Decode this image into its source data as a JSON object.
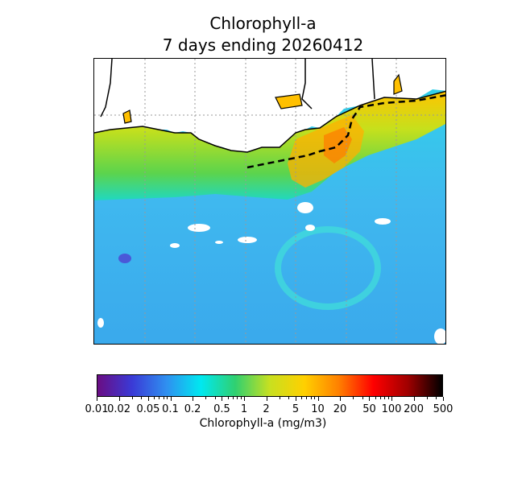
{
  "figure": {
    "title_line1": "Chlorophyll-a",
    "title_line2": "7 days ending 20260412"
  },
  "map": {
    "variable": "Chlorophyll-a",
    "region_features": [
      "coastline",
      "state-borders",
      "graticule",
      "cloud-mask",
      "dashed-boundary"
    ]
  },
  "colorbar": {
    "label": "Chlorophyll-a (mg/m3)",
    "scale": "log",
    "range": [
      0.01,
      500
    ],
    "ticks": [
      "0.01",
      "0.02",
      "0.05",
      "0.1",
      "0.2",
      "0.5",
      "1",
      "2",
      "5",
      "10",
      "20",
      "50",
      "100",
      "200",
      "500"
    ],
    "colors": [
      "#6a0d83",
      "#3a3ad6",
      "#2f8ff0",
      "#00e8f0",
      "#30d070",
      "#c8e020",
      "#ffd000",
      "#ff8000",
      "#ff0000",
      "#a00000",
      "#000000"
    ]
  }
}
